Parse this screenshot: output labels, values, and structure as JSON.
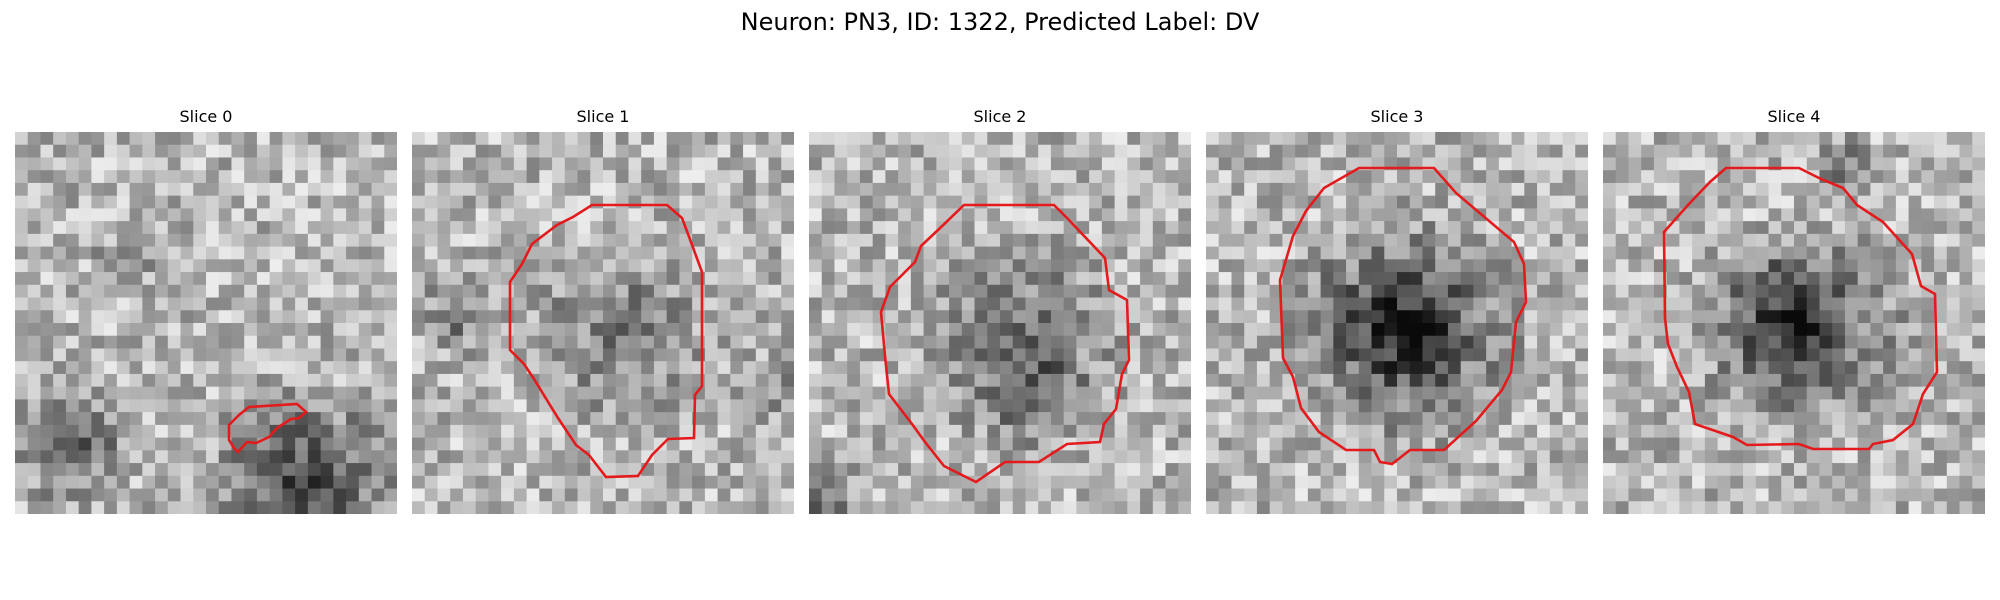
{
  "figure": {
    "title": "Neuron: PN3, ID: 1322, Predicted Label: DV"
  },
  "slices": [
    {
      "title": "Slice 0"
    },
    {
      "title": "Slice 1"
    },
    {
      "title": "Slice 2"
    },
    {
      "title": "Slice 3"
    },
    {
      "title": "Slice 4"
    }
  ],
  "colors": {
    "contour": "#e41a1c",
    "background": "#ffffff"
  }
}
